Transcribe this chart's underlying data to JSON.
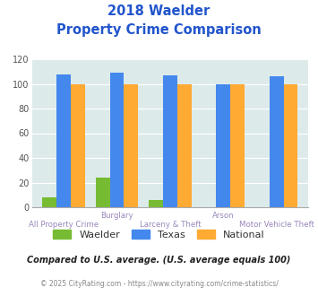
{
  "title_line1": "2018 Waelder",
  "title_line2": "Property Crime Comparison",
  "categories": [
    "All Property Crime",
    "Burglary",
    "Larceny & Theft",
    "Arson",
    "Motor Vehicle Theft"
  ],
  "top_labels": [
    "",
    "Burglary",
    "",
    "Arson",
    ""
  ],
  "bottom_labels": [
    "All Property Crime",
    "",
    "Larceny & Theft",
    "",
    "Motor Vehicle Theft"
  ],
  "waelder": [
    8,
    24,
    6,
    0,
    0
  ],
  "texas": [
    108,
    109,
    107,
    100,
    106
  ],
  "national": [
    100,
    100,
    100,
    100,
    100
  ],
  "waelder_color": "#77bb33",
  "texas_color": "#4488ee",
  "national_color": "#ffaa33",
  "ylim": [
    0,
    120
  ],
  "yticks": [
    0,
    20,
    40,
    60,
    80,
    100,
    120
  ],
  "bg_color": "#ddeaea",
  "title_color": "#2255cc",
  "label_color": "#9988bb",
  "footnote": "Compared to U.S. average. (U.S. average equals 100)",
  "footnote2": "© 2025 CityRating.com - https://www.cityrating.com/crime-statistics/",
  "footnote_color": "#222222",
  "footnote2_color": "#888888",
  "url_color": "#3366cc"
}
